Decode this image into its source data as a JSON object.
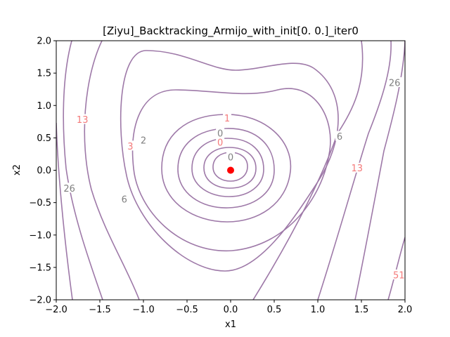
{
  "chart_data": {
    "type": "contour",
    "title": "[Ziyu]_Backtracking_Armijo_with_init[0. 0.]_iter0",
    "xlabel": "x1",
    "ylabel": "x2",
    "xlim": [
      -2.0,
      2.0
    ],
    "ylim": [
      -2.0,
      2.0
    ],
    "x_ticks": [
      "−2.0",
      "−1.5",
      "−1.0",
      "−0.5",
      "0.0",
      "0.5",
      "1.0",
      "1.5",
      "2.0"
    ],
    "y_ticks": [
      "−2.0",
      "−1.5",
      "−1.0",
      "−0.5",
      "0.0",
      "0.5",
      "1.0",
      "1.5",
      "2.0"
    ],
    "x_tick_values": [
      -2.0,
      -1.5,
      -1.0,
      -0.5,
      0.0,
      0.5,
      1.0,
      1.5,
      2.0
    ],
    "y_tick_values": [
      -2.0,
      -1.5,
      -1.0,
      -0.5,
      0.0,
      0.5,
      1.0,
      1.5,
      2.0
    ],
    "contour_color": "#9e79a8",
    "marker": {
      "x": 0.0,
      "y": 0.0,
      "color": "#ff0000"
    },
    "contour_labels": [
      {
        "text": "0",
        "x": 0.0,
        "y": 0.2,
        "color": "#808080"
      },
      {
        "text": "0",
        "x": -0.12,
        "y": 0.43,
        "color": "#f47a7a"
      },
      {
        "text": "0",
        "x": -0.12,
        "y": 0.57,
        "color": "#808080"
      },
      {
        "text": "1",
        "x": -0.04,
        "y": 0.8,
        "color": "#f47a7a"
      },
      {
        "text": "2",
        "x": -1.0,
        "y": 0.46,
        "color": "#808080"
      },
      {
        "text": "3",
        "x": -1.15,
        "y": 0.37,
        "color": "#f47a7a"
      },
      {
        "text": "6",
        "x": -1.22,
        "y": -0.45,
        "color": "#808080"
      },
      {
        "text": "6",
        "x": 1.25,
        "y": 0.52,
        "color": "#808080"
      },
      {
        "text": "13",
        "x": -1.7,
        "y": 0.78,
        "color": "#f47a7a"
      },
      {
        "text": "13",
        "x": 1.45,
        "y": 0.03,
        "color": "#f47a7a"
      },
      {
        "text": "26",
        "x": -1.85,
        "y": -0.28,
        "color": "#808080"
      },
      {
        "text": "26",
        "x": 1.88,
        "y": 1.35,
        "color": "#808080"
      },
      {
        "text": "51",
        "x": 1.93,
        "y": -1.62,
        "color": "#f47a7a"
      }
    ]
  }
}
